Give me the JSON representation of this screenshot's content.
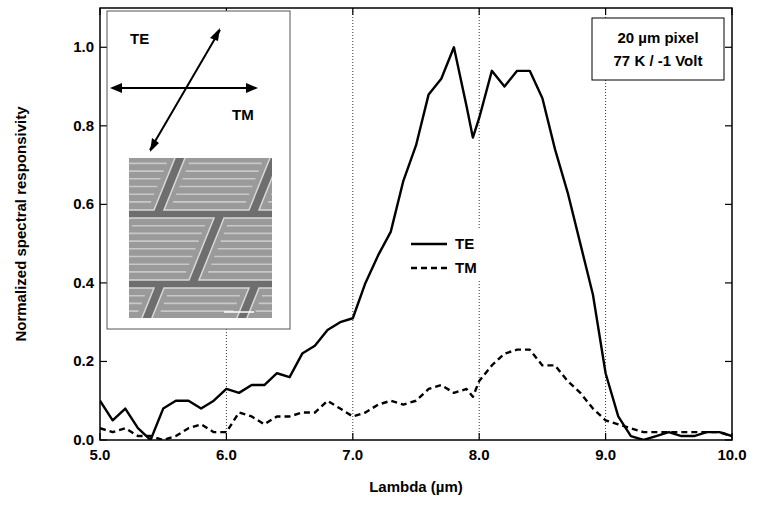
{
  "chart_data": {
    "type": "line",
    "x_label": "Lambda (µm)",
    "y_label": "Normalized spectral responsivity",
    "annotations": [
      "TE",
      "TM",
      "20 µm pixel",
      "77 K / -1 Volt"
    ],
    "xlim": [
      5.0,
      10.0
    ],
    "ylim": [
      0,
      1.1
    ],
    "xticks": [
      {
        "value": 5,
        "label": "5.0"
      },
      {
        "value": 6,
        "label": "6.0"
      },
      {
        "value": 7,
        "label": "7.0"
      },
      {
        "value": 8,
        "label": "8.0"
      },
      {
        "value": 9,
        "label": "9.0"
      },
      {
        "value": 10,
        "label": "10.0"
      }
    ],
    "yticks": [
      {
        "value": 0,
        "label": "0.0"
      },
      {
        "value": 0.2,
        "label": "0.2"
      },
      {
        "value": 0.4,
        "label": "0.4"
      },
      {
        "value": 0.6,
        "label": "0.6"
      },
      {
        "value": 0.8,
        "label": "0.8"
      },
      {
        "value": 1,
        "label": "1.0"
      }
    ],
    "grid": "x",
    "legend": "center",
    "x": [
      5.0,
      5.1,
      5.2,
      5.3,
      5.4,
      5.5,
      5.6,
      5.7,
      5.8,
      5.9,
      6.0,
      6.1,
      6.2,
      6.3,
      6.4,
      6.5,
      6.6,
      6.7,
      6.8,
      6.9,
      7.0,
      7.1,
      7.2,
      7.3,
      7.4,
      7.5,
      7.6,
      7.7,
      7.8,
      7.9,
      7.95,
      8.0,
      8.1,
      8.2,
      8.3,
      8.4,
      8.5,
      8.6,
      8.7,
      8.8,
      8.9,
      9.0,
      9.1,
      9.2,
      9.3,
      9.4,
      9.5,
      9.6,
      9.7,
      9.8,
      9.9,
      10.0
    ],
    "series": [
      {
        "name": "TE",
        "color": "#000000",
        "line_style": "solid",
        "values": [
          0.1,
          0.05,
          0.08,
          0.03,
          0.0,
          0.08,
          0.1,
          0.1,
          0.08,
          0.1,
          0.13,
          0.12,
          0.14,
          0.14,
          0.17,
          0.16,
          0.22,
          0.24,
          0.28,
          0.3,
          0.31,
          0.4,
          0.47,
          0.53,
          0.66,
          0.75,
          0.88,
          0.92,
          1.0,
          0.85,
          0.77,
          0.82,
          0.94,
          0.9,
          0.94,
          0.94,
          0.87,
          0.74,
          0.63,
          0.5,
          0.37,
          0.17,
          0.06,
          0.01,
          0.0,
          0.01,
          0.02,
          0.01,
          0.01,
          0.02,
          0.02,
          0.01
        ]
      },
      {
        "name": "TM",
        "color": "#000000",
        "line_style": "dashed",
        "values": [
          0.03,
          0.02,
          0.03,
          0.01,
          0.01,
          0.0,
          0.01,
          0.03,
          0.04,
          0.02,
          0.02,
          0.07,
          0.06,
          0.04,
          0.06,
          0.06,
          0.07,
          0.07,
          0.1,
          0.08,
          0.06,
          0.07,
          0.09,
          0.1,
          0.09,
          0.1,
          0.13,
          0.14,
          0.12,
          0.13,
          0.11,
          0.15,
          0.19,
          0.22,
          0.23,
          0.23,
          0.19,
          0.19,
          0.15,
          0.12,
          0.08,
          0.05,
          0.04,
          0.03,
          0.02,
          0.02,
          0.02,
          0.02,
          0.02,
          0.02,
          0.02,
          0.01
        ]
      }
    ]
  }
}
